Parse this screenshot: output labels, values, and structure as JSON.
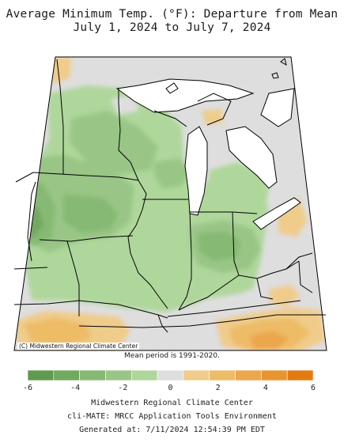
{
  "title": {
    "line1": "Average Minimum Temp. (°F): Departure from Mean",
    "line2": "July 1, 2024 to July 7, 2024"
  },
  "map": {
    "credit": "(C) Midwestern Regional Climate Center",
    "mean_period": "Mean period is 1991-2020."
  },
  "legend": {
    "colors": [
      "#5f9a4e",
      "#72a95e",
      "#86b973",
      "#99c686",
      "#afd79b",
      "#dedede",
      "#efcc8a",
      "#eebb66",
      "#eca64b",
      "#e8942f",
      "#e37b12"
    ],
    "tick_labels": [
      "-6",
      "-4",
      "-2",
      "0",
      "2",
      "4",
      "6"
    ],
    "tick_values": [
      -6,
      -4,
      -2,
      0,
      2,
      4,
      6
    ],
    "range": [
      -6,
      6
    ]
  },
  "footer": {
    "line1": "Midwestern Regional Climate Center",
    "line2": "cli-MATE: MRCC Application Tools Environment",
    "line3": "Generated at: 7/11/2024 12:54:39 PM EDT"
  }
}
